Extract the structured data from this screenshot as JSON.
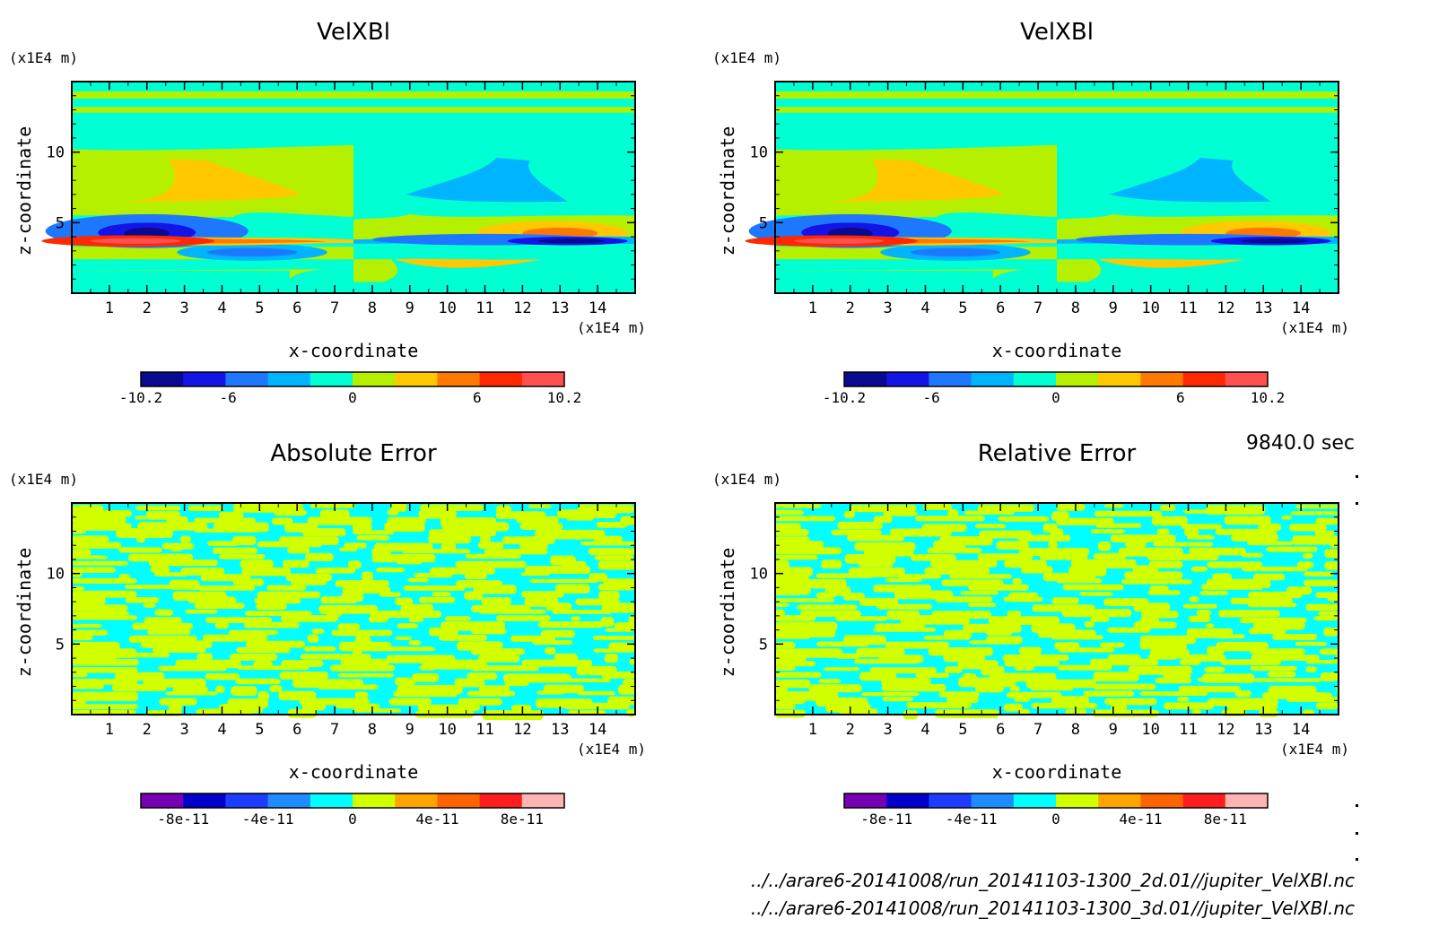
{
  "time_label": "9840.0 sec",
  "footer": {
    "line1": "../../arare6-20141008/run_20141103-1300_2d.01//jupiter_VelXBl.nc",
    "line2": "../../arare6-20141008/run_20141103-1300_3d.01//jupiter_VelXBl.nc"
  },
  "colors": {
    "velocity_levels": [
      "#0a0a90",
      "#1414e6",
      "#1e78ff",
      "#00b4ff",
      "#00ffd2",
      "#b4f000",
      "#ffc800",
      "#ff7800",
      "#ff2800",
      "#ff5050"
    ],
    "error_levels": [
      "#7800b4",
      "#0000c8",
      "#1e3cff",
      "#1e8cff",
      "#00ffff",
      "#d2ff00",
      "#ffa500",
      "#ff6400",
      "#ff1e1e",
      "#ffb4b4"
    ],
    "frame": "#000000"
  },
  "chart_data": [
    {
      "type": "heatmap",
      "title": "VelXBl",
      "xlabel": "x-coordinate",
      "ylabel": "z-coordinate",
      "x_unit": "(x1E4 m)",
      "y_unit": "(x1E4 m)",
      "xlim": [
        0,
        15
      ],
      "ylim": [
        0,
        15
      ],
      "x_ticks": [
        1,
        2,
        3,
        4,
        5,
        6,
        7,
        8,
        9,
        10,
        11,
        12,
        13,
        14
      ],
      "y_ticks": [
        5,
        10
      ],
      "colorbar": {
        "min": -10.2,
        "max": 10.2,
        "tick_labels": [
          "-10.2",
          "-6",
          "0",
          "6",
          "10.2"
        ],
        "tick_values": [
          -10.2,
          -6,
          0,
          6,
          10.2
        ]
      }
    },
    {
      "type": "heatmap",
      "title": "VelXBl",
      "xlabel": "x-coordinate",
      "ylabel": "z-coordinate",
      "x_unit": "(x1E4 m)",
      "y_unit": "(x1E4 m)",
      "xlim": [
        0,
        15
      ],
      "ylim": [
        0,
        15
      ],
      "x_ticks": [
        1,
        2,
        3,
        4,
        5,
        6,
        7,
        8,
        9,
        10,
        11,
        12,
        13,
        14
      ],
      "y_ticks": [
        5,
        10
      ],
      "colorbar": {
        "min": -10.2,
        "max": 10.2,
        "tick_labels": [
          "-10.2",
          "-6",
          "0",
          "6",
          "10.2"
        ],
        "tick_values": [
          -10.2,
          -6,
          0,
          6,
          10.2
        ]
      }
    },
    {
      "type": "heatmap",
      "title": "Absolute Error",
      "xlabel": "x-coordinate",
      "ylabel": "z-coordinate",
      "x_unit": "(x1E4 m)",
      "y_unit": "(x1E4 m)",
      "xlim": [
        0,
        15
      ],
      "ylim": [
        0,
        15
      ],
      "x_ticks": [
        1,
        2,
        3,
        4,
        5,
        6,
        7,
        8,
        9,
        10,
        11,
        12,
        13,
        14
      ],
      "y_ticks": [
        5,
        10
      ],
      "colorbar": {
        "min": -1e-10,
        "max": 1e-10,
        "tick_labels": [
          "-8e-11",
          "-4e-11",
          "0",
          "4e-11",
          "8e-11"
        ],
        "tick_values": [
          -8e-11,
          -4e-11,
          0,
          4e-11,
          8e-11
        ]
      }
    },
    {
      "type": "heatmap",
      "title": "Relative Error",
      "xlabel": "x-coordinate",
      "ylabel": "z-coordinate",
      "x_unit": "(x1E4 m)",
      "y_unit": "(x1E4 m)",
      "xlim": [
        0,
        15
      ],
      "ylim": [
        0,
        15
      ],
      "x_ticks": [
        1,
        2,
        3,
        4,
        5,
        6,
        7,
        8,
        9,
        10,
        11,
        12,
        13,
        14
      ],
      "y_ticks": [
        5,
        10
      ],
      "colorbar": {
        "min": -1e-10,
        "max": 1e-10,
        "tick_labels": [
          "-8e-11",
          "-4e-11",
          "0",
          "4e-11",
          "8e-11"
        ],
        "tick_values": [
          -8e-11,
          -4e-11,
          0,
          4e-11,
          8e-11
        ]
      }
    }
  ]
}
